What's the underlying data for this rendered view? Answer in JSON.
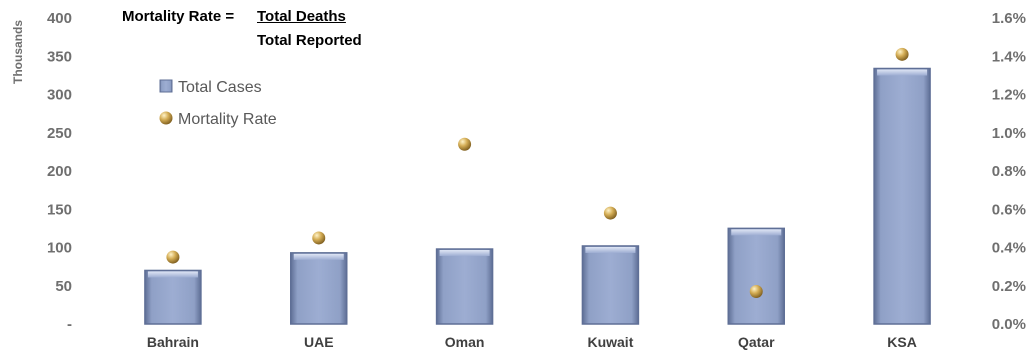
{
  "formula": {
    "lhs": "Mortality Rate =",
    "numerator": "Total Deaths",
    "denominator": "Total Reported"
  },
  "chart_data": {
    "type": "bar",
    "categories": [
      "Bahrain",
      "UAE",
      "Oman",
      "Kuwait",
      "Qatar",
      "KSA"
    ],
    "series": [
      {
        "name": "Total Cases",
        "type": "bar",
        "axis": "left",
        "values": [
          70,
          93,
          98,
          102,
          125,
          334
        ]
      },
      {
        "name": "Mortality Rate",
        "type": "scatter",
        "axis": "right",
        "values": [
          0.0035,
          0.0045,
          0.0094,
          0.0058,
          0.0017,
          0.0141
        ]
      }
    ],
    "left_axis": {
      "unit_label": "Thousands",
      "ylim": [
        0,
        400
      ],
      "ticks": [
        "-",
        "50",
        "100",
        "150",
        "200",
        "250",
        "300",
        "350",
        "400"
      ]
    },
    "right_axis": {
      "ylim": [
        0,
        0.016
      ],
      "ticks": [
        "0.0%",
        "0.2%",
        "0.4%",
        "0.6%",
        "0.8%",
        "1.0%",
        "1.2%",
        "1.4%",
        "1.6%"
      ]
    },
    "legend": {
      "position": "top-left",
      "entries": [
        "Total Cases",
        "Mortality Rate"
      ]
    },
    "colors": {
      "bar": "#8fa0c6",
      "bar_dark": "#5f6f96",
      "bar_light": "#c9d3ea",
      "dot": "#c9a24a",
      "dot_light": "#f7e3a8"
    },
    "grid": false
  }
}
